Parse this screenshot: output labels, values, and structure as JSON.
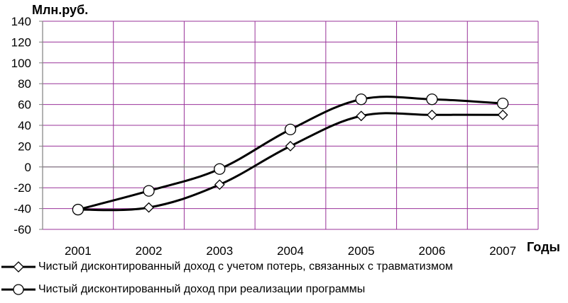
{
  "chart_data": {
    "type": "line",
    "ylabel": "Млн.руб.",
    "xlabel": "Годы",
    "categories": [
      "2001",
      "2002",
      "2003",
      "2004",
      "2005",
      "2006",
      "2007"
    ],
    "ylim": [
      -60,
      140
    ],
    "yticks": [
      "140",
      "120",
      "100",
      "80",
      "60",
      "40",
      "20",
      "0",
      "-20",
      "-40",
      "-60"
    ],
    "grid": true,
    "legend_position": "bottom",
    "series": [
      {
        "name": "Чистый дисконтированный доход с учетом потерь, связанных с травматизмом",
        "marker": "diamond",
        "values": [
          -41,
          -39,
          -17,
          20,
          49,
          50,
          50
        ]
      },
      {
        "name": "Чистый дисконтированный доход при реализации программы",
        "marker": "circle",
        "values": [
          -41,
          -23,
          -2,
          36,
          65,
          65,
          61
        ]
      }
    ],
    "colors": {
      "grid": "#993399",
      "line": "#000000"
    }
  }
}
